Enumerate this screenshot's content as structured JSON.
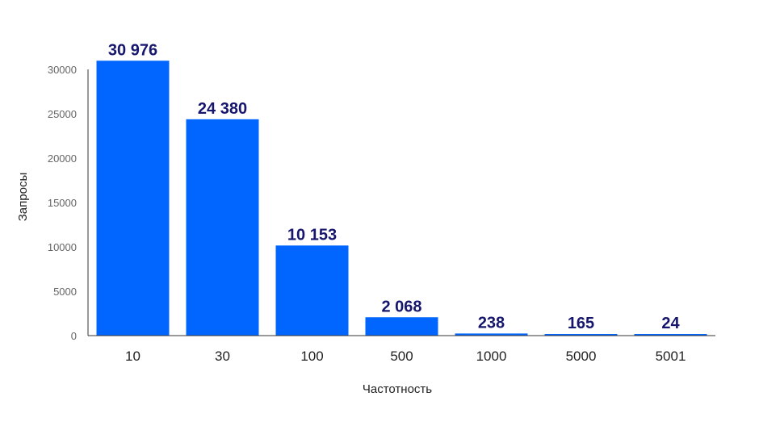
{
  "chart_data": {
    "type": "bar",
    "title": "",
    "xlabel": "Частотность",
    "ylabel": "Запросы",
    "categories": [
      "10",
      "30",
      "100",
      "500",
      "1000",
      "5000",
      "5001"
    ],
    "values": [
      30976,
      24380,
      10153,
      2068,
      238,
      165,
      24
    ],
    "value_labels": [
      "30 976",
      "24 380",
      "10 153",
      "2 068",
      "238",
      "165",
      "24"
    ],
    "yticks": [
      "0",
      "5000",
      "10000",
      "15000",
      "20000",
      "25000",
      "30000"
    ],
    "ylim": [
      0,
      30000
    ],
    "grid": false,
    "legend": "none",
    "colors": {
      "bar": "#0066ff",
      "label": "#16166e"
    }
  }
}
